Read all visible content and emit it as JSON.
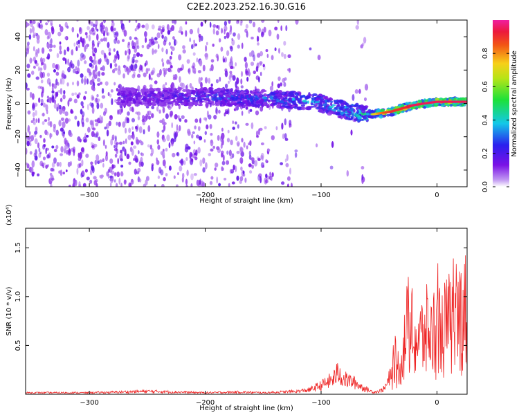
{
  "title": "C2E2.2023.252.16.30.G16",
  "chart_data": [
    {
      "type": "heatmap",
      "xlabel": "Height of straight line (km)",
      "ylabel": "Frequency (Hz)",
      "xlim": [
        -355,
        26
      ],
      "ylim": [
        -50,
        50
      ],
      "xticks": [
        -300,
        -200,
        -100,
        0
      ],
      "yticks": [
        -40,
        -20,
        0,
        20,
        40
      ],
      "colorbar": {
        "label": "Normalized spectral amplitude",
        "range": [
          0,
          1
        ],
        "ticks": [
          0.0,
          0.2,
          0.4,
          0.6,
          0.8
        ],
        "colormap": "rainbow (white-violet-blue-cyan-green-yellow-red-magenta)"
      },
      "ridge": {
        "x": [
          -270,
          -200,
          -150,
          -120,
          -100,
          -80,
          -60,
          -50,
          -40,
          -30,
          -20,
          -10,
          0,
          10,
          26
        ],
        "y": [
          4,
          4,
          3,
          2,
          0,
          -4,
          -7,
          -6,
          -5,
          -3,
          -1,
          0,
          1,
          1,
          1
        ],
        "peak_amplitude": [
          0.2,
          0.3,
          0.35,
          0.4,
          0.45,
          0.45,
          0.55,
          0.8,
          0.9,
          0.9,
          0.95,
          0.95,
          0.95,
          0.95,
          0.95
        ]
      },
      "grid": false
    },
    {
      "type": "line",
      "xlabel": "Height of straight line (km)",
      "ylabel": "SNR (10 * v/v)",
      "y_multiplier": "(x10⁴)",
      "xlim": [
        -355,
        26
      ],
      "ylim": [
        0,
        1.7
      ],
      "xticks": [
        -300,
        -200,
        -100,
        0
      ],
      "yticks": [
        0.5,
        1.0,
        1.5
      ],
      "series": [
        {
          "color": "#ee2222",
          "x": [
            -355,
            -300,
            -250,
            -200,
            -170,
            -150,
            -120,
            -110,
            -100,
            -90,
            -85,
            -80,
            -75,
            -70,
            -65,
            -60,
            -55,
            -50,
            -45,
            -40,
            -35,
            -30,
            -25,
            -20,
            -15,
            -10,
            -5,
            0,
            5,
            10,
            15,
            20,
            26
          ],
          "y": [
            0.02,
            0.02,
            0.04,
            0.02,
            0.03,
            0.02,
            0.04,
            0.06,
            0.12,
            0.2,
            0.3,
            0.2,
            0.18,
            0.15,
            0.1,
            0.06,
            0.03,
            0.04,
            0.08,
            0.25,
            0.35,
            0.55,
            1.05,
            0.85,
            0.8,
            0.95,
            0.9,
            1.0,
            0.95,
            1.05,
            1.0,
            1.2,
            1.25
          ]
        }
      ],
      "grid": false
    }
  ]
}
